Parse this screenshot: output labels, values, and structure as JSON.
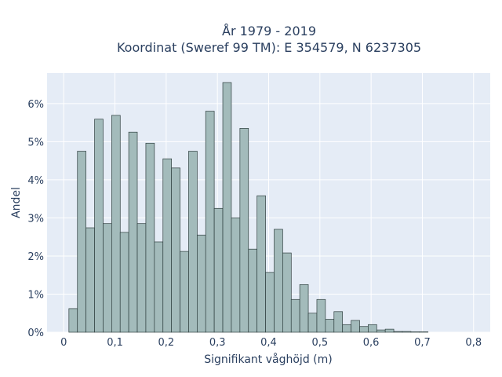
{
  "chart_data": {
    "type": "bar",
    "title_line1": "År 1979 - 2019",
    "title_line2": "Koordinat (Sweref 99 TM): E 354579, N 6237305",
    "xlabel": "Signifikant våghöjd (m)",
    "ylabel": "Andel",
    "bin_width": 0.01669,
    "xlim": [
      -0.0325,
      0.8325
    ],
    "ylim": [
      0,
      0.068
    ],
    "x_ticks": [
      0,
      0.1,
      0.2,
      0.3,
      0.4,
      0.5,
      0.6,
      0.7,
      0.8
    ],
    "x_tick_labels": [
      "0",
      "0,1",
      "0,2",
      "0,3",
      "0,4",
      "0,5",
      "0,6",
      "0,7",
      "0,8"
    ],
    "y_ticks": [
      0,
      0.01,
      0.02,
      0.03,
      0.04,
      0.05,
      0.06
    ],
    "y_tick_labels": [
      "0%",
      "1%",
      "2%",
      "3%",
      "4%",
      "5%",
      "6%"
    ],
    "bar_color": "#a3bbbb",
    "bar_edge_color": "#2f3f3f",
    "plot_bg": "#e5ecf6",
    "bins_start": [
      0.0101,
      0.0268,
      0.0435,
      0.0602,
      0.0769,
      0.0936,
      0.1102,
      0.1269,
      0.1436,
      0.1603,
      0.177,
      0.1937,
      0.2104,
      0.2271,
      0.2438,
      0.2605,
      0.2771,
      0.2938,
      0.3105,
      0.3272,
      0.3439,
      0.3606,
      0.3773,
      0.394,
      0.4107,
      0.4274,
      0.444,
      0.4607,
      0.4774,
      0.4941,
      0.5108,
      0.5275,
      0.5442,
      0.5609,
      0.5776,
      0.5943,
      0.611,
      0.6276,
      0.6443,
      0.661,
      0.6777,
      0.6944
    ],
    "values": [
      0.0062,
      0.0475,
      0.0274,
      0.0559,
      0.0285,
      0.0569,
      0.0262,
      0.0525,
      0.0285,
      0.0496,
      0.0237,
      0.0455,
      0.0431,
      0.0212,
      0.0475,
      0.0255,
      0.058,
      0.0325,
      0.0655,
      0.03,
      0.0535,
      0.0218,
      0.0358,
      0.0157,
      0.027,
      0.0208,
      0.0086,
      0.0125,
      0.005,
      0.0086,
      0.0034,
      0.0054,
      0.002,
      0.0031,
      0.0015,
      0.002,
      0.0006,
      0.0008,
      0.0002,
      0.0002,
      0.0001,
      0.0001
    ]
  }
}
